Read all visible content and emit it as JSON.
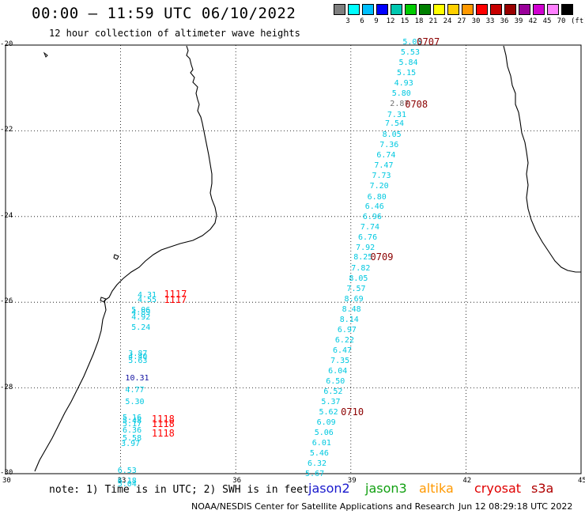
{
  "header": {
    "title": "00:00 – 11:59 UTC 06/10/2022",
    "subtitle": "12 hour collection of altimeter wave heights"
  },
  "legend": {
    "unit": "(ft)",
    "bins": [
      {
        "label": "3",
        "color": "#7f7f7f"
      },
      {
        "label": "6",
        "color": "#00ffff"
      },
      {
        "label": "9",
        "color": "#00c0ff"
      },
      {
        "label": "12",
        "color": "#0000ff"
      },
      {
        "label": "15",
        "color": "#00c8b0"
      },
      {
        "label": "18",
        "color": "#00cc00"
      },
      {
        "label": "21",
        "color": "#008000"
      },
      {
        "label": "24",
        "color": "#ffff00"
      },
      {
        "label": "27",
        "color": "#ffd000"
      },
      {
        "label": "30",
        "color": "#ff9900"
      },
      {
        "label": "33",
        "color": "#ff0000"
      },
      {
        "label": "36",
        "color": "#c80000"
      },
      {
        "label": "39",
        "color": "#990000"
      },
      {
        "label": "42",
        "color": "#990099"
      },
      {
        "label": "45",
        "color": "#d000d0"
      },
      {
        "label": "70",
        "color": "#ff80ff"
      },
      {
        "label": "",
        "color": "#000000"
      }
    ]
  },
  "axes": {
    "lon_ticks": [
      "30",
      "33",
      "36",
      "39",
      "42",
      "45"
    ],
    "lat_ticks": [
      "-20",
      "-22",
      "-24",
      "-26",
      "-28",
      "-30"
    ]
  },
  "observations": [
    {
      "text": "5.05",
      "lon": 40.35,
      "lat": -19.94,
      "color": "#00c8e0"
    },
    {
      "text": "5.53",
      "lon": 40.3,
      "lat": -20.18,
      "color": "#00c8e0"
    },
    {
      "text": "5.84",
      "lon": 40.25,
      "lat": -20.42,
      "color": "#00c8e0"
    },
    {
      "text": "5.15",
      "lon": 40.2,
      "lat": -20.66,
      "color": "#00c8e0"
    },
    {
      "text": "4.93",
      "lon": 40.13,
      "lat": -20.9,
      "color": "#00c8e0"
    },
    {
      "text": "5.80",
      "lon": 40.07,
      "lat": -21.14,
      "color": "#00c8e0"
    },
    {
      "text": "2.87",
      "lon": 40.02,
      "lat": -21.38,
      "color": "#707070"
    },
    {
      "text": "7.31",
      "lon": 39.95,
      "lat": -21.64,
      "color": "#00c8e0"
    },
    {
      "text": "7.54",
      "lon": 39.89,
      "lat": -21.85,
      "color": "#00c8e0"
    },
    {
      "text": "8.05",
      "lon": 39.82,
      "lat": -22.1,
      "color": "#00c8e0"
    },
    {
      "text": "7.36",
      "lon": 39.75,
      "lat": -22.34,
      "color": "#00c8e0"
    },
    {
      "text": "6.74",
      "lon": 39.67,
      "lat": -22.58,
      "color": "#00c8e0"
    },
    {
      "text": "7.47",
      "lon": 39.61,
      "lat": -22.82,
      "color": "#00c8e0"
    },
    {
      "text": "7.73",
      "lon": 39.55,
      "lat": -23.06,
      "color": "#00c8e0"
    },
    {
      "text": "7.20",
      "lon": 39.49,
      "lat": -23.31,
      "color": "#00c8e0"
    },
    {
      "text": "6.80",
      "lon": 39.43,
      "lat": -23.56,
      "color": "#00c8e0"
    },
    {
      "text": "6.46",
      "lon": 39.37,
      "lat": -23.79,
      "color": "#00c8e0"
    },
    {
      "text": "6.96",
      "lon": 39.31,
      "lat": -24.02,
      "color": "#00c8e0"
    },
    {
      "text": "7.74",
      "lon": 39.25,
      "lat": -24.26,
      "color": "#00c8e0"
    },
    {
      "text": "6.76",
      "lon": 39.19,
      "lat": -24.5,
      "color": "#00c8e0"
    },
    {
      "text": "7.92",
      "lon": 39.13,
      "lat": -24.74,
      "color": "#00c8e0"
    },
    {
      "text": "8.25",
      "lon": 39.07,
      "lat": -24.96,
      "color": "#00c8e0"
    },
    {
      "text": "7.82",
      "lon": 39.01,
      "lat": -25.22,
      "color": "#00c8e0"
    },
    {
      "text": "8.05",
      "lon": 38.95,
      "lat": -25.46,
      "color": "#00c8e0"
    },
    {
      "text": "7.57",
      "lon": 38.89,
      "lat": -25.7,
      "color": "#00c8e0"
    },
    {
      "text": "8.69",
      "lon": 38.83,
      "lat": -25.94,
      "color": "#00c8e0"
    },
    {
      "text": "8.48",
      "lon": 38.77,
      "lat": -26.18,
      "color": "#00c8e0"
    },
    {
      "text": "8.14",
      "lon": 38.71,
      "lat": -26.42,
      "color": "#00c8e0"
    },
    {
      "text": "6.97",
      "lon": 38.65,
      "lat": -26.66,
      "color": "#00c8e0"
    },
    {
      "text": "6.22",
      "lon": 38.59,
      "lat": -26.9,
      "color": "#00c8e0"
    },
    {
      "text": "6.47",
      "lon": 38.53,
      "lat": -27.14,
      "color": "#00c8e0"
    },
    {
      "text": "7.35",
      "lon": 38.47,
      "lat": -27.38,
      "color": "#00c8e0"
    },
    {
      "text": "6.04",
      "lon": 38.41,
      "lat": -27.62,
      "color": "#00c8e0"
    },
    {
      "text": "6.50",
      "lon": 38.35,
      "lat": -27.86,
      "color": "#00c8e0"
    },
    {
      "text": "6.52",
      "lon": 38.29,
      "lat": -28.1,
      "color": "#00c8e0"
    },
    {
      "text": "5.37",
      "lon": 38.23,
      "lat": -28.34,
      "color": "#00c8e0"
    },
    {
      "text": "5.62",
      "lon": 38.17,
      "lat": -28.58,
      "color": "#00c8e0"
    },
    {
      "text": "6.09",
      "lon": 38.11,
      "lat": -28.82,
      "color": "#00c8e0"
    },
    {
      "text": "5.06",
      "lon": 38.05,
      "lat": -29.06,
      "color": "#00c8e0"
    },
    {
      "text": "6.01",
      "lon": 37.99,
      "lat": -29.3,
      "color": "#00c8e0"
    },
    {
      "text": "5.46",
      "lon": 37.93,
      "lat": -29.54,
      "color": "#00c8e0"
    },
    {
      "text": "6.32",
      "lon": 37.87,
      "lat": -29.78,
      "color": "#00c8e0"
    },
    {
      "text": "5.67",
      "lon": 37.81,
      "lat": -30.02,
      "color": "#00c8e0"
    },
    {
      "text": "4.31",
      "lon": 33.44,
      "lat": -25.84,
      "color": "#00c8e0"
    },
    {
      "text": "4.55",
      "lon": 33.44,
      "lat": -25.96,
      "color": "#00c8e0"
    },
    {
      "text": "5.06",
      "lon": 33.28,
      "lat": -26.2,
      "color": "#00c8e0"
    },
    {
      "text": "4.89",
      "lon": 33.28,
      "lat": -26.26,
      "color": "#00c8e0"
    },
    {
      "text": "4.92",
      "lon": 33.28,
      "lat": -26.36,
      "color": "#00c8e0"
    },
    {
      "text": "5.24",
      "lon": 33.28,
      "lat": -26.6,
      "color": "#00c8e0"
    },
    {
      "text": "3.87",
      "lon": 33.2,
      "lat": -27.22,
      "color": "#00c8e0"
    },
    {
      "text": "4.40",
      "lon": 33.2,
      "lat": -27.28,
      "color": "#00c8e0"
    },
    {
      "text": "5.63",
      "lon": 33.2,
      "lat": -27.38,
      "color": "#00c8e0"
    },
    {
      "text": "10.31",
      "lon": 33.12,
      "lat": -27.78,
      "color": "#1010a0"
    },
    {
      "text": "4.77",
      "lon": 33.12,
      "lat": -28.06,
      "color": "#00c8e0"
    },
    {
      "text": "5.30",
      "lon": 33.12,
      "lat": -28.34,
      "color": "#00c8e0"
    },
    {
      "text": "5.16",
      "lon": 33.05,
      "lat": -28.7,
      "color": "#00c8e0"
    },
    {
      "text": "5.48",
      "lon": 33.05,
      "lat": -28.78,
      "color": "#00c8e0"
    },
    {
      "text": "5.17",
      "lon": 33.05,
      "lat": -28.86,
      "color": "#00c8e0"
    },
    {
      "text": "6.36",
      "lon": 33.05,
      "lat": -29.0,
      "color": "#00c8e0"
    },
    {
      "text": "5.58",
      "lon": 33.05,
      "lat": -29.18,
      "color": "#00c8e0"
    },
    {
      "text": "3.97",
      "lon": 33.01,
      "lat": -29.32,
      "color": "#00c8e0"
    },
    {
      "text": "6.53",
      "lon": 32.92,
      "lat": -29.94,
      "color": "#00c8e0"
    },
    {
      "text": "6.18",
      "lon": 32.92,
      "lat": -30.18,
      "color": "#00c8e0"
    },
    {
      "text": "5.04",
      "lon": 32.92,
      "lat": -30.26,
      "color": "#00c8e0"
    }
  ],
  "pass_labels": [
    {
      "text": "0707",
      "lon": 40.72,
      "lat": -19.92,
      "color": "#8b0000"
    },
    {
      "text": "0708",
      "lon": 40.41,
      "lat": -21.38,
      "color": "#8b0000"
    },
    {
      "text": "0709",
      "lon": 39.51,
      "lat": -24.94,
      "color": "#8b0000"
    },
    {
      "text": "0710",
      "lon": 38.74,
      "lat": -28.56,
      "color": "#8b0000"
    },
    {
      "text": "1117",
      "lon": 34.13,
      "lat": -25.82,
      "color": "#ff0000"
    },
    {
      "text": "1117",
      "lon": 34.13,
      "lat": -25.94,
      "color": "#ff0000"
    },
    {
      "text": "1118",
      "lon": 33.81,
      "lat": -28.72,
      "color": "#ff0000"
    },
    {
      "text": "1118",
      "lon": 33.81,
      "lat": -28.84,
      "color": "#ff0000"
    },
    {
      "text": "1118",
      "lon": 33.81,
      "lat": -29.06,
      "color": "#ff0000"
    }
  ],
  "footer": {
    "note": "note: 1) Time is in UTC; 2) SWH is in feet",
    "missions": [
      {
        "label": "jason2",
        "color": "#1a1acd"
      },
      {
        "label": "jason3",
        "color": "#12a012"
      },
      {
        "label": "altika",
        "color": "#ff9900"
      },
      {
        "label": "cryosat",
        "color": "#e00000"
      },
      {
        "label": "s3a",
        "color": "#b00000"
      }
    ],
    "credit": "NOAA/NESDIS Center for Satellite Applications and Research",
    "timestamp": "Jun 12 08:29:18 UTC 2022"
  }
}
